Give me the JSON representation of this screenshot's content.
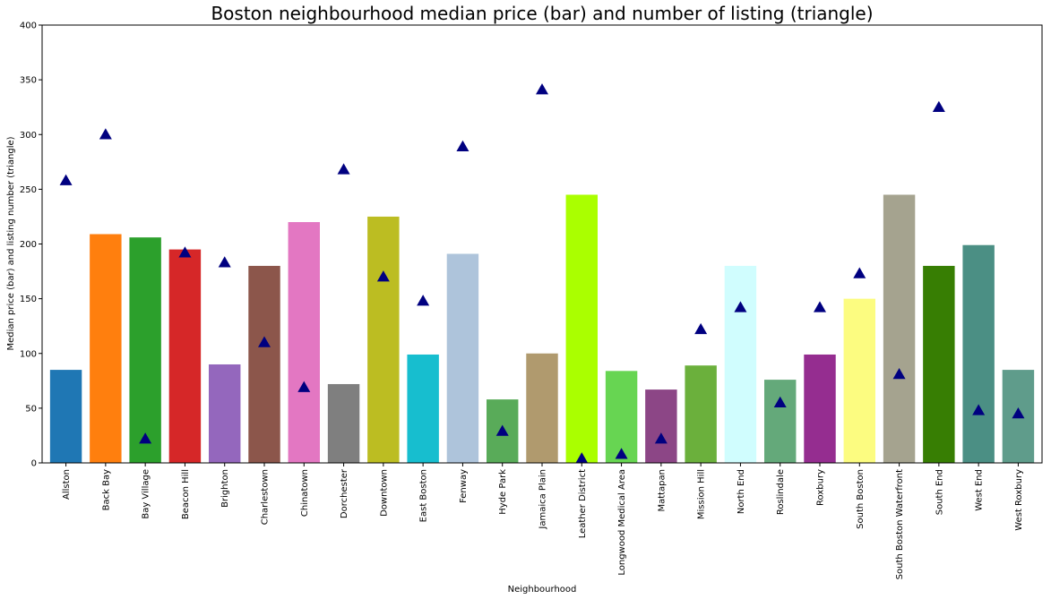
{
  "chart_data": {
    "type": "bar",
    "title": "Boston neighbourhood median price (bar) and number of listing (triangle)",
    "xlabel": "Neighbourhood",
    "ylabel": "Median price (bar) and listing number (triangle)",
    "ylim": [
      0,
      400
    ],
    "yticks": [
      0,
      50,
      100,
      150,
      200,
      250,
      300,
      350,
      400
    ],
    "grid": false,
    "categories": [
      "Allston",
      "Back Bay",
      "Bay Village",
      "Beacon Hill",
      "Brighton",
      "Charlestown",
      "Chinatown",
      "Dorchester",
      "Downtown",
      "East Boston",
      "Fenway",
      "Hyde Park",
      "Jamaica Plain",
      "Leather District",
      "Longwood Medical Area",
      "Mattapan",
      "Mission Hill",
      "North End",
      "Roslindale",
      "Roxbury",
      "South Boston",
      "South Boston Waterfront",
      "South End",
      "West End",
      "West Roxbury"
    ],
    "series": [
      {
        "name": "",
        "marker": "bar",
        "values": [
          85,
          209,
          206,
          195,
          90,
          180,
          220,
          72,
          225,
          99,
          191,
          58,
          100,
          245,
          84,
          67,
          89,
          180,
          76,
          99,
          150,
          245,
          180,
          199,
          85
        ]
      },
      {
        "name": "",
        "marker": "triangle",
        "color": "#000080",
        "values": [
          258,
          300,
          22,
          192,
          183,
          110,
          69,
          268,
          170,
          148,
          289,
          29,
          341,
          4,
          8,
          22,
          122,
          142,
          55,
          142,
          173,
          81,
          325,
          48,
          45
        ]
      }
    ],
    "bar_colors": [
      "#1f77b4",
      "#ff7f0e",
      "#2ca02c",
      "#d62728",
      "#9467bd",
      "#8c564b",
      "#e377c2",
      "#7f7f7f",
      "#bcbd22",
      "#17becf",
      "#aec4db",
      "#59ab59",
      "#b09a6e",
      "#aaff00",
      "#67d552",
      "#8c4686",
      "#6bb03c",
      "#d0fdfe",
      "#64a97a",
      "#952d90",
      "#fcfc80",
      "#a5a38f",
      "#377e03",
      "#4b8f84",
      "#5f9c8b"
    ]
  }
}
